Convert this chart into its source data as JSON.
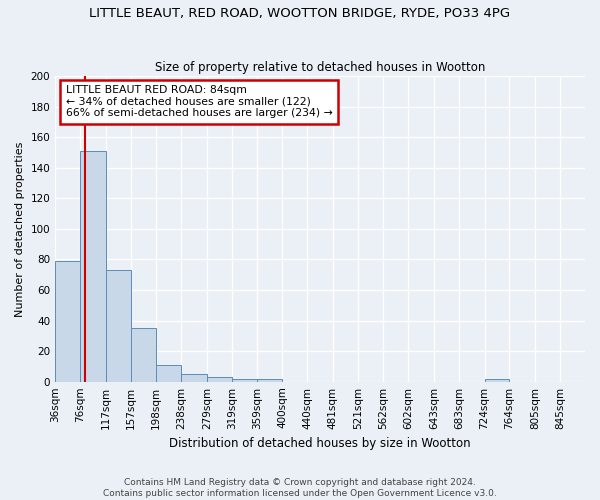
{
  "title": "LITTLE BEAUT, RED ROAD, WOOTTON BRIDGE, RYDE, PO33 4PG",
  "subtitle": "Size of property relative to detached houses in Wootton",
  "xlabel": "Distribution of detached houses by size in Wootton",
  "ylabel": "Number of detached properties",
  "bar_color": "#c8d8e8",
  "bar_edge_color": "#5b8db8",
  "categories": [
    "36sqm",
    "76sqm",
    "117sqm",
    "157sqm",
    "198sqm",
    "238sqm",
    "279sqm",
    "319sqm",
    "359sqm",
    "400sqm",
    "440sqm",
    "481sqm",
    "521sqm",
    "562sqm",
    "602sqm",
    "643sqm",
    "683sqm",
    "724sqm",
    "764sqm",
    "805sqm",
    "845sqm"
  ],
  "values": [
    79,
    151,
    73,
    35,
    11,
    5,
    3,
    2,
    2,
    0,
    0,
    0,
    0,
    0,
    0,
    0,
    0,
    2,
    0,
    0,
    0
  ],
  "ylim": [
    0,
    200
  ],
  "yticks": [
    0,
    20,
    40,
    60,
    80,
    100,
    120,
    140,
    160,
    180,
    200
  ],
  "bin_edges": [
    36,
    76,
    117,
    157,
    198,
    238,
    279,
    319,
    359,
    400,
    440,
    481,
    521,
    562,
    602,
    643,
    683,
    724,
    764,
    805,
    845,
    885
  ],
  "red_line_x": 84,
  "annotation_line1": "LITTLE BEAUT RED ROAD: 84sqm",
  "annotation_line2": "← 34% of detached houses are smaller (122)",
  "annotation_line3": "66% of semi-detached houses are larger (234) →",
  "footer_line1": "Contains HM Land Registry data © Crown copyright and database right 2024.",
  "footer_line2": "Contains public sector information licensed under the Open Government Licence v3.0.",
  "bg_color": "#eaf0f6",
  "grid_color": "#ffffff",
  "annotation_box_color": "#ffffff",
  "annotation_box_edge": "#cc0000",
  "red_line_color": "#cc0000",
  "title_fontsize": 9.5,
  "subtitle_fontsize": 8.5,
  "ylabel_fontsize": 8,
  "xlabel_fontsize": 8.5,
  "tick_fontsize": 7.5,
  "annotation_fontsize": 7.8,
  "footer_fontsize": 6.5
}
